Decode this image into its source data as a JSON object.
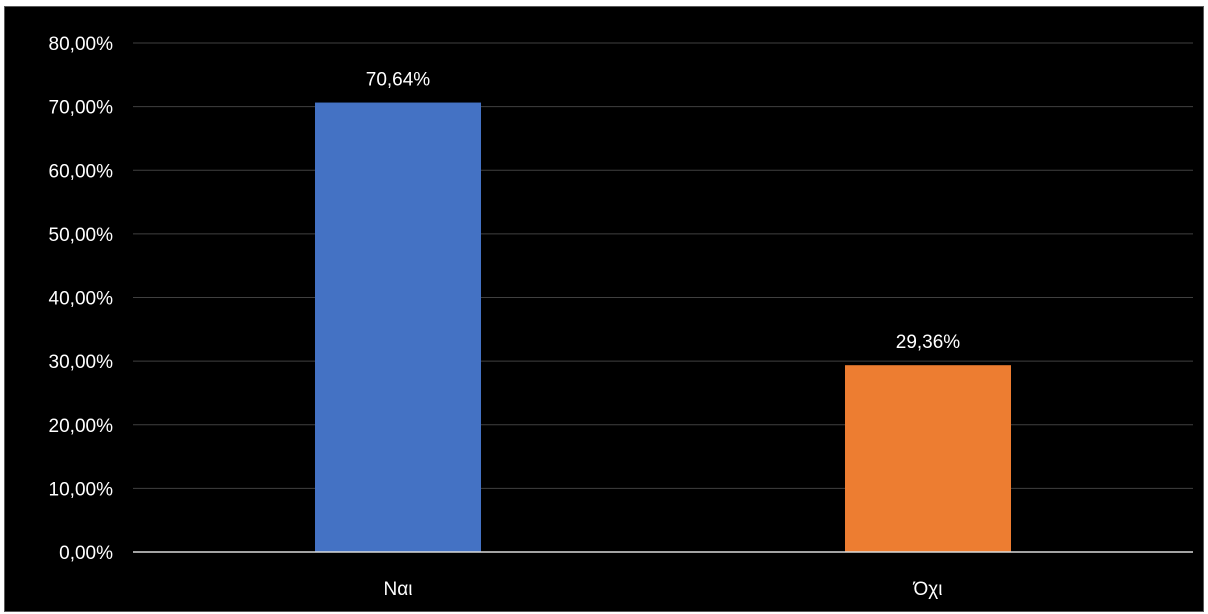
{
  "chart_data": {
    "type": "bar",
    "categories": [
      "Ναι",
      "Όχι"
    ],
    "values": [
      70.64,
      29.36
    ],
    "data_labels": [
      "70,64%",
      "29,36%"
    ],
    "bar_colors": [
      "#4472C4",
      "#ED7D31"
    ],
    "background_color": "#000000",
    "gridline_color": "#404040",
    "axis_color": "#d9d9d9",
    "text_color": "#ffffff",
    "ylim": [
      0,
      80
    ],
    "y_ticks": [
      0,
      10,
      20,
      30,
      40,
      50,
      60,
      70,
      80
    ],
    "y_tick_labels": [
      "0,00%",
      "10,00%",
      "20,00%",
      "30,00%",
      "40,00%",
      "50,00%",
      "60,00%",
      "70,00%",
      "80,00%"
    ],
    "grid": true,
    "legend": "none",
    "title": "",
    "xlabel": "",
    "ylabel": ""
  }
}
